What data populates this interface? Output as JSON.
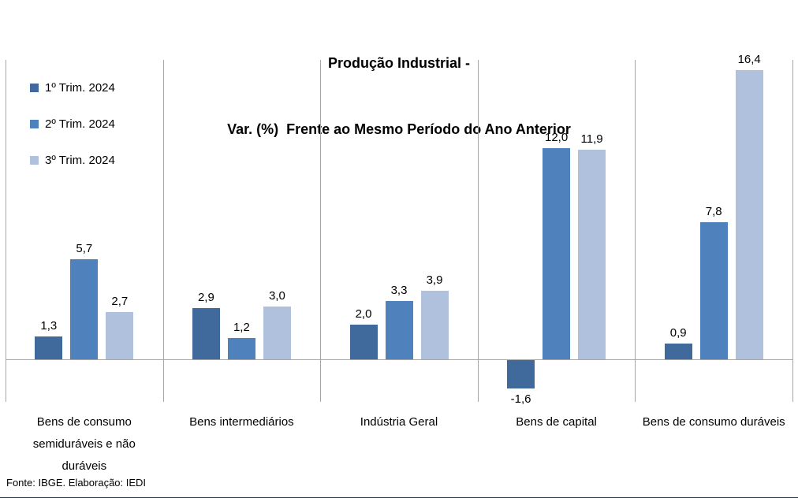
{
  "title": {
    "line1": "Produção Industrial -",
    "line2": "Var. (%)  Frente ao Mesmo Período do Ano Anterior"
  },
  "footer": {
    "source": "Fonte: IBGE. Elaboração: IEDI"
  },
  "colors": {
    "series1": "#3F6A9B",
    "series2": "#4F81BD",
    "series3": "#B0C1DE",
    "gridline": "#A6A6A6"
  },
  "chart_data": {
    "type": "bar",
    "title": "Produção Industrial - Var. (%) Frente ao Mesmo Período do Ano Anterior",
    "categories": [
      "Bens de consumo semiduráveis e não duráveis",
      "Bens intermediários",
      "Indústria Geral",
      "Bens de capital",
      "Bens de consumo duráveis"
    ],
    "series": [
      {
        "name": "1º Trim. 2024",
        "color": "#3F6A9B",
        "values": [
          1.3,
          2.9,
          2.0,
          -1.6,
          0.9
        ],
        "labels": [
          "1,3",
          "2,9",
          "2,0",
          "-1,6",
          "0,9"
        ]
      },
      {
        "name": "2º Trim. 2024",
        "color": "#4F81BD",
        "values": [
          5.7,
          1.2,
          3.3,
          12.0,
          7.8
        ],
        "labels": [
          "5,7",
          "1,2",
          "3,3",
          "12,0",
          "7,8"
        ]
      },
      {
        "name": "3º Trim. 2024",
        "color": "#B0C1DE",
        "values": [
          2.7,
          3.0,
          3.9,
          11.9,
          16.4
        ],
        "labels": [
          "2,7",
          "3,0",
          "3,9",
          "11,9",
          "16,4"
        ]
      }
    ],
    "ylim": [
      -2.4,
      17.0
    ],
    "xlabel": "",
    "ylabel": "",
    "grid": {
      "vertical_dividers": true,
      "zero_line": true,
      "horizontal_gridlines": false
    },
    "legend_position": "top-left-inside",
    "value_labels_shown": true
  }
}
